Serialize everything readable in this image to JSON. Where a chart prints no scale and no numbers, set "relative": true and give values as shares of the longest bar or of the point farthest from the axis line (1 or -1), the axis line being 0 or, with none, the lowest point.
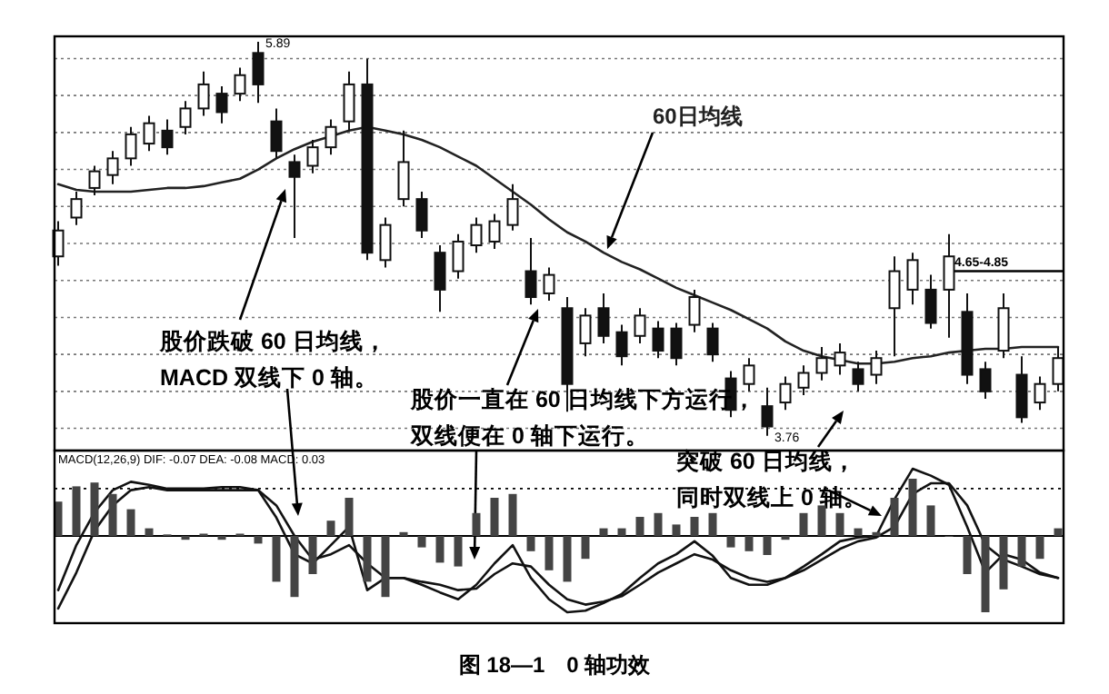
{
  "chart_data": [
    {
      "type": "candlestick",
      "title": "图 18—1　0 轴功效",
      "color": "#111111",
      "categories": [
        null,
        null,
        null,
        null,
        null,
        null,
        null,
        null,
        null,
        null,
        null,
        null,
        null,
        null,
        null,
        null,
        null,
        null,
        null,
        null,
        null,
        null,
        null,
        null,
        null,
        null,
        null,
        null,
        null,
        null,
        null,
        null,
        null,
        null,
        null,
        null,
        null,
        null,
        null,
        null,
        null,
        null,
        null,
        null,
        null,
        null,
        null,
        null,
        null,
        null,
        null,
        null,
        null,
        null,
        null,
        null
      ],
      "ohlc": [
        [
          4.73,
          4.92,
          4.68,
          4.87
        ],
        [
          4.94,
          5.08,
          4.9,
          5.04
        ],
        [
          5.1,
          5.22,
          5.06,
          5.19
        ],
        [
          5.17,
          5.3,
          5.12,
          5.26
        ],
        [
          5.26,
          5.43,
          5.22,
          5.39
        ],
        [
          5.34,
          5.49,
          5.3,
          5.45
        ],
        [
          5.41,
          5.47,
          5.28,
          5.32
        ],
        [
          5.43,
          5.57,
          5.39,
          5.53
        ],
        [
          5.53,
          5.73,
          5.49,
          5.66
        ],
        [
          5.61,
          5.65,
          5.45,
          5.51
        ],
        [
          5.61,
          5.75,
          5.57,
          5.71
        ],
        [
          5.83,
          5.89,
          5.56,
          5.66
        ],
        [
          5.46,
          5.53,
          5.26,
          5.3
        ],
        [
          5.24,
          5.28,
          4.83,
          5.16
        ],
        [
          5.22,
          5.36,
          5.18,
          5.32
        ],
        [
          5.32,
          5.47,
          5.28,
          5.43
        ],
        [
          5.46,
          5.73,
          5.41,
          5.66
        ],
        [
          5.66,
          5.8,
          4.71,
          4.75
        ],
        [
          4.71,
          4.94,
          4.67,
          4.9
        ],
        [
          5.04,
          5.41,
          5.0,
          5.24
        ],
        [
          5.04,
          5.08,
          4.83,
          4.87
        ],
        [
          4.75,
          4.79,
          4.43,
          4.55
        ],
        [
          4.65,
          4.85,
          4.61,
          4.81
        ],
        [
          4.79,
          4.94,
          4.75,
          4.9
        ],
        [
          4.81,
          4.96,
          4.77,
          4.92
        ],
        [
          4.9,
          5.12,
          4.87,
          5.04
        ],
        [
          4.65,
          4.83,
          4.47,
          4.51
        ],
        [
          4.53,
          4.67,
          4.49,
          4.63
        ],
        [
          4.45,
          4.51,
          3.89,
          4.04
        ],
        [
          4.26,
          4.45,
          4.19,
          4.41
        ],
        [
          4.45,
          4.53,
          4.26,
          4.3
        ],
        [
          4.32,
          4.36,
          4.14,
          4.19
        ],
        [
          4.3,
          4.45,
          4.26,
          4.41
        ],
        [
          4.34,
          4.38,
          4.18,
          4.22
        ],
        [
          4.34,
          4.37,
          4.14,
          4.18
        ],
        [
          4.36,
          4.55,
          4.32,
          4.51
        ],
        [
          4.34,
          4.37,
          4.16,
          4.2
        ],
        [
          4.07,
          4.11,
          3.86,
          3.9
        ],
        [
          4.04,
          4.18,
          4.0,
          4.14
        ],
        [
          3.92,
          4.02,
          3.76,
          3.81
        ],
        [
          3.94,
          4.08,
          3.9,
          4.04
        ],
        [
          4.02,
          4.14,
          3.98,
          4.1
        ],
        [
          4.1,
          4.24,
          4.06,
          4.18
        ],
        [
          4.14,
          4.26,
          4.09,
          4.21
        ],
        [
          4.12,
          4.16,
          4.0,
          4.04
        ],
        [
          4.09,
          4.22,
          4.04,
          4.18
        ],
        [
          4.45,
          4.73,
          4.19,
          4.65
        ],
        [
          4.55,
          4.75,
          4.47,
          4.71
        ],
        [
          4.55,
          4.63,
          4.34,
          4.37
        ],
        [
          4.55,
          4.85,
          4.29,
          4.73
        ],
        [
          4.43,
          4.53,
          4.04,
          4.09
        ],
        [
          4.12,
          4.16,
          3.96,
          4.0
        ],
        [
          4.22,
          4.53,
          4.18,
          4.45
        ],
        [
          4.09,
          4.19,
          3.83,
          3.86
        ],
        [
          3.94,
          4.08,
          3.9,
          4.04
        ],
        [
          4.04,
          4.24,
          4.0,
          4.18
        ]
      ],
      "series": [
        {
          "name": "60日均线",
          "type": "line",
          "color": "#222222",
          "values": [
            5.12,
            5.09,
            5.08,
            5.08,
            5.08,
            5.09,
            5.1,
            5.1,
            5.11,
            5.13,
            5.15,
            5.2,
            5.26,
            5.31,
            5.35,
            5.38,
            5.41,
            5.43,
            5.41,
            5.39,
            5.36,
            5.32,
            5.27,
            5.22,
            5.15,
            5.08,
            5.01,
            4.93,
            4.86,
            4.81,
            4.75,
            4.7,
            4.66,
            4.61,
            4.56,
            4.52,
            4.48,
            4.44,
            4.39,
            4.34,
            4.27,
            4.22,
            4.19,
            4.17,
            4.15,
            4.15,
            4.16,
            4.18,
            4.19,
            4.21,
            4.22,
            4.23,
            4.23,
            4.24,
            4.24,
            4.24
          ]
        }
      ],
      "ylim": [
        3.68,
        5.92
      ],
      "yticks": [
        {
          "value": 3.8,
          "label": null
        },
        {
          "value": 4.0,
          "label": null
        },
        {
          "value": 4.2,
          "label": null
        },
        {
          "value": 4.4,
          "label": null
        },
        {
          "value": 4.6,
          "label": null
        },
        {
          "value": 4.8,
          "label": null
        },
        {
          "value": 5.0,
          "label": null
        },
        {
          "value": 5.2,
          "label": null
        },
        {
          "value": 5.4,
          "label": null
        },
        {
          "value": 5.6,
          "label": null
        },
        {
          "value": 5.8,
          "label": null
        }
      ],
      "grid": "y",
      "ref_lines": [
        {
          "axis": "y",
          "value": 4.65,
          "label": "4.65-4.85"
        }
      ],
      "annotations": [
        "5.89",
        "3.76",
        "股价跌破 60 日均线，",
        "MACD 双线下 0 轴。",
        "股价一直在 60 日均线下方运行，",
        "双线便在 0 轴下运行。",
        "突破 60 日均线，",
        "同时双线上 0 轴。"
      ]
    },
    {
      "type": "bar",
      "relative": true,
      "title": "MACD(12,26,9) DIF: -0.07 DEA: -0.08 MACD: 0.03",
      "categories": [
        null,
        null,
        null,
        null,
        null,
        null,
        null,
        null,
        null,
        null,
        null,
        null,
        null,
        null,
        null,
        null,
        null,
        null,
        null,
        null,
        null,
        null,
        null,
        null,
        null,
        null,
        null,
        null,
        null,
        null,
        null,
        null,
        null,
        null,
        null,
        null,
        null,
        null,
        null,
        null,
        null,
        null,
        null,
        null,
        null,
        null,
        null,
        null,
        null,
        null,
        null,
        null,
        null,
        null,
        null,
        null
      ],
      "series": [
        {
          "type": "bar",
          "color": "#444444",
          "values": [
            0.45,
            0.65,
            0.7,
            0.55,
            0.35,
            0.1,
            0.02,
            -0.05,
            0.03,
            -0.05,
            0.03,
            -0.1,
            -0.6,
            -0.8,
            -0.5,
            0.2,
            0.5,
            -0.6,
            -0.8,
            0.05,
            -0.15,
            -0.35,
            -0.4,
            0.3,
            0.5,
            0.55,
            -0.2,
            -0.45,
            -0.6,
            -0.3,
            0.1,
            0.1,
            0.25,
            0.3,
            0.15,
            0.25,
            0.3,
            -0.15,
            -0.2,
            -0.25,
            -0.05,
            0.3,
            0.4,
            0.3,
            0.1,
            0.05,
            0.5,
            0.75,
            0.4,
            0,
            -0.5,
            -1.0,
            -0.7,
            -0.4,
            -0.3,
            0.1
          ]
        },
        {
          "type": "line",
          "color": "#111111",
          "values": [
            -0.71,
            -0.12,
            0.31,
            0.6,
            0.71,
            0.67,
            0.62,
            0.62,
            0.62,
            0.64,
            0.64,
            0.6,
            0.24,
            -0.24,
            -0.36,
            -0.12,
            0.12,
            -0.71,
            -0.55,
            -0.55,
            -0.64,
            -0.74,
            -0.83,
            -0.64,
            -0.36,
            -0.12,
            -0.55,
            -0.83,
            -1.0,
            -0.98,
            -0.88,
            -0.76,
            -0.55,
            -0.36,
            -0.24,
            -0.07,
            -0.26,
            -0.55,
            -0.64,
            -0.64,
            -0.55,
            -0.4,
            -0.24,
            -0.07,
            -0.02,
            0,
            0.48,
            0.88,
            0.79,
            0.67,
            0.12,
            -0.48,
            -0.24,
            -0.31,
            -0.48,
            -0.55
          ]
        },
        {
          "type": "line",
          "color": "#111111",
          "values": [
            -0.95,
            -0.48,
            0.07,
            0.4,
            0.6,
            0.64,
            0.6,
            0.6,
            0.6,
            0.6,
            0.6,
            0.6,
            0.4,
            0,
            -0.31,
            -0.24,
            -0.12,
            -0.36,
            -0.55,
            -0.55,
            -0.6,
            -0.64,
            -0.71,
            -0.69,
            -0.5,
            -0.36,
            -0.4,
            -0.64,
            -0.83,
            -0.9,
            -0.86,
            -0.79,
            -0.64,
            -0.48,
            -0.36,
            -0.24,
            -0.31,
            -0.45,
            -0.55,
            -0.6,
            -0.55,
            -0.45,
            -0.31,
            -0.17,
            -0.07,
            -0.02,
            0.12,
            0.55,
            0.69,
            0.69,
            0.4,
            -0.12,
            -0.31,
            -0.4,
            -0.5,
            -0.55
          ]
        }
      ],
      "ref_lines": [
        {
          "axis": "y",
          "value": 0.62,
          "line_style": "dotted"
        }
      ]
    }
  ]
}
